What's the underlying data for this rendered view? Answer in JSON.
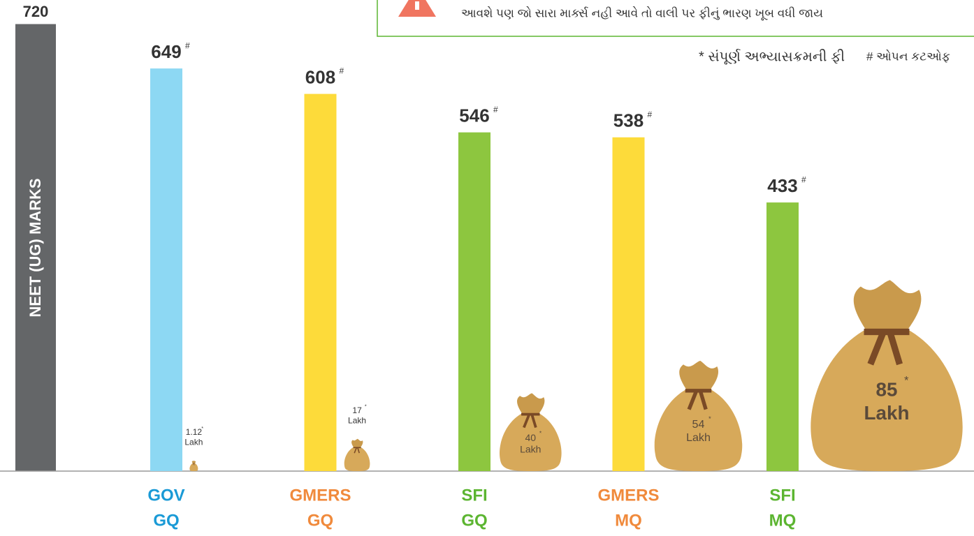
{
  "chart_data": {
    "type": "bar",
    "y_label": "NEET (UG)  MARKS",
    "categories": [
      [
        "GOV",
        "GQ"
      ],
      [
        "GMERS",
        "GQ"
      ],
      [
        "SFI",
        "GQ"
      ],
      [
        "GMERS",
        "MQ"
      ],
      [
        "SFI",
        "MQ"
      ]
    ],
    "category_colors": [
      "#1a9ad6",
      "#f08a3c",
      "#5cb531",
      "#f08a3c",
      "#5cb531"
    ],
    "values": [
      649,
      608,
      546,
      538,
      433
    ],
    "colors": [
      "#8dd8f3",
      "#fddb3a",
      "#8dc63f",
      "#fddb3a",
      "#8dc63f"
    ],
    "value_mark": "#",
    "fees": [
      1.12,
      17,
      40,
      54,
      85
    ],
    "fee_mark": "*",
    "fee_unit": "Lakh",
    "ylim": [
      0,
      720
    ],
    "yticks": [
      720
    ],
    "warning": "આવશે પણ જો સારા માર્ક્સ નહી આવે તો વાલી પર ફીનું ભારણ ખૂબ વધી જાય",
    "notes": [
      "* સંપૂર્ણ અભ્યાસક્રમની ફી",
      "# ઓપન કટઓફ"
    ]
  }
}
